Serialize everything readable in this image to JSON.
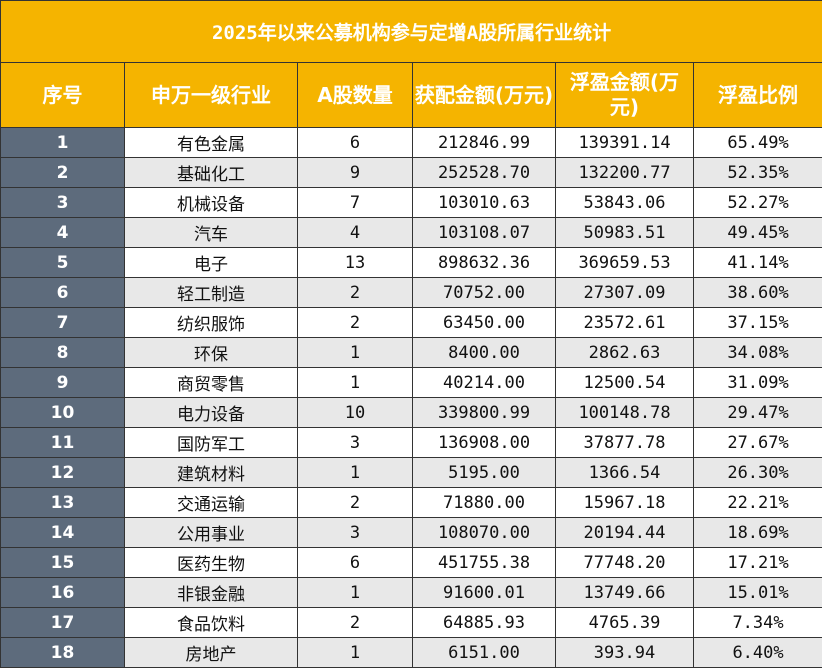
{
  "header": {
    "title": "2025年以来公募机构参与定增A股所属行业统计"
  },
  "table": {
    "columns": [
      "序号",
      "申万一级行业",
      "A股数量",
      "获配金额(万元)",
      "浮盈金额(万元)",
      "浮盈比例"
    ],
    "rows": [
      [
        "1",
        "有色金属",
        "6",
        "212846.99",
        "139391.14",
        "65.49%"
      ],
      [
        "2",
        "基础化工",
        "9",
        "252528.70",
        "132200.77",
        "52.35%"
      ],
      [
        "3",
        "机械设备",
        "7",
        "103010.63",
        "53843.06",
        "52.27%"
      ],
      [
        "4",
        "汽车",
        "4",
        "103108.07",
        "50983.51",
        "49.45%"
      ],
      [
        "5",
        "电子",
        "13",
        "898632.36",
        "369659.53",
        "41.14%"
      ],
      [
        "6",
        "轻工制造",
        "2",
        "70752.00",
        "27307.09",
        "38.60%"
      ],
      [
        "7",
        "纺织服饰",
        "2",
        "63450.00",
        "23572.61",
        "37.15%"
      ],
      [
        "8",
        "环保",
        "1",
        "8400.00",
        "2862.63",
        "34.08%"
      ],
      [
        "9",
        "商贸零售",
        "1",
        "40214.00",
        "12500.54",
        "31.09%"
      ],
      [
        "10",
        "电力设备",
        "10",
        "339800.99",
        "100148.78",
        "29.47%"
      ],
      [
        "11",
        "国防军工",
        "3",
        "136908.00",
        "37877.78",
        "27.67%"
      ],
      [
        "12",
        "建筑材料",
        "1",
        "5195.00",
        "1366.54",
        "26.30%"
      ],
      [
        "13",
        "交通运输",
        "2",
        "71880.00",
        "15967.18",
        "22.21%"
      ],
      [
        "14",
        "公用事业",
        "3",
        "108070.00",
        "20194.44",
        "18.69%"
      ],
      [
        "15",
        "医药生物",
        "6",
        "451755.38",
        "77748.20",
        "17.21%"
      ],
      [
        "16",
        "非银金融",
        "1",
        "91600.01",
        "13749.66",
        "15.01%"
      ],
      [
        "17",
        "食品饮料",
        "2",
        "64885.93",
        "4765.39",
        "7.34%"
      ],
      [
        "18",
        "房地产",
        "1",
        "6151.00",
        "393.94",
        "6.40%"
      ]
    ]
  }
}
